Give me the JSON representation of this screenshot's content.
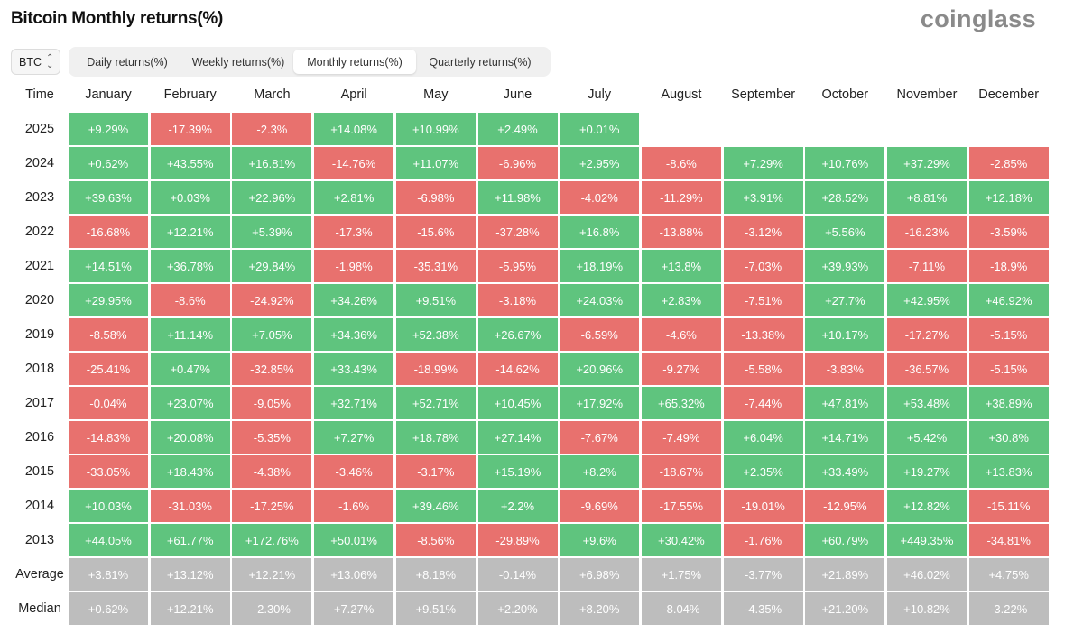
{
  "header": {
    "title": "Bitcoin Monthly returns(%)",
    "logo": "coinglass"
  },
  "coin_select": {
    "value": "BTC"
  },
  "tabs": [
    {
      "label": "Daily returns(%)",
      "active": false
    },
    {
      "label": "Weekly returns(%)",
      "active": false
    },
    {
      "label": "Monthly returns(%)",
      "active": true
    },
    {
      "label": "Quarterly returns(%)",
      "active": false
    }
  ],
  "colors": {
    "positive": "#5fc47e",
    "negative": "#e8716e",
    "summary": "#bdbdbd"
  },
  "table": {
    "corner_label": "Time",
    "months": [
      "January",
      "February",
      "March",
      "April",
      "May",
      "June",
      "July",
      "August",
      "September",
      "October",
      "November",
      "December"
    ],
    "rows": [
      {
        "label": "2025",
        "type": "year",
        "values": [
          "+9.29%",
          "-17.39%",
          "-2.3%",
          "+14.08%",
          "+10.99%",
          "+2.49%",
          "+0.01%",
          "",
          "",
          "",
          "",
          ""
        ]
      },
      {
        "label": "2024",
        "type": "year",
        "values": [
          "+0.62%",
          "+43.55%",
          "+16.81%",
          "-14.76%",
          "+11.07%",
          "-6.96%",
          "+2.95%",
          "-8.6%",
          "+7.29%",
          "+10.76%",
          "+37.29%",
          "-2.85%"
        ]
      },
      {
        "label": "2023",
        "type": "year",
        "values": [
          "+39.63%",
          "+0.03%",
          "+22.96%",
          "+2.81%",
          "-6.98%",
          "+11.98%",
          "-4.02%",
          "-11.29%",
          "+3.91%",
          "+28.52%",
          "+8.81%",
          "+12.18%"
        ]
      },
      {
        "label": "2022",
        "type": "year",
        "values": [
          "-16.68%",
          "+12.21%",
          "+5.39%",
          "-17.3%",
          "-15.6%",
          "-37.28%",
          "+16.8%",
          "-13.88%",
          "-3.12%",
          "+5.56%",
          "-16.23%",
          "-3.59%"
        ]
      },
      {
        "label": "2021",
        "type": "year",
        "values": [
          "+14.51%",
          "+36.78%",
          "+29.84%",
          "-1.98%",
          "-35.31%",
          "-5.95%",
          "+18.19%",
          "+13.8%",
          "-7.03%",
          "+39.93%",
          "-7.11%",
          "-18.9%"
        ]
      },
      {
        "label": "2020",
        "type": "year",
        "values": [
          "+29.95%",
          "-8.6%",
          "-24.92%",
          "+34.26%",
          "+9.51%",
          "-3.18%",
          "+24.03%",
          "+2.83%",
          "-7.51%",
          "+27.7%",
          "+42.95%",
          "+46.92%"
        ]
      },
      {
        "label": "2019",
        "type": "year",
        "values": [
          "-8.58%",
          "+11.14%",
          "+7.05%",
          "+34.36%",
          "+52.38%",
          "+26.67%",
          "-6.59%",
          "-4.6%",
          "-13.38%",
          "+10.17%",
          "-17.27%",
          "-5.15%"
        ]
      },
      {
        "label": "2018",
        "type": "year",
        "values": [
          "-25.41%",
          "+0.47%",
          "-32.85%",
          "+33.43%",
          "-18.99%",
          "-14.62%",
          "+20.96%",
          "-9.27%",
          "-5.58%",
          "-3.83%",
          "-36.57%",
          "-5.15%"
        ]
      },
      {
        "label": "2017",
        "type": "year",
        "values": [
          "-0.04%",
          "+23.07%",
          "-9.05%",
          "+32.71%",
          "+52.71%",
          "+10.45%",
          "+17.92%",
          "+65.32%",
          "-7.44%",
          "+47.81%",
          "+53.48%",
          "+38.89%"
        ]
      },
      {
        "label": "2016",
        "type": "year",
        "values": [
          "-14.83%",
          "+20.08%",
          "-5.35%",
          "+7.27%",
          "+18.78%",
          "+27.14%",
          "-7.67%",
          "-7.49%",
          "+6.04%",
          "+14.71%",
          "+5.42%",
          "+30.8%"
        ]
      },
      {
        "label": "2015",
        "type": "year",
        "values": [
          "-33.05%",
          "+18.43%",
          "-4.38%",
          "-3.46%",
          "-3.17%",
          "+15.19%",
          "+8.2%",
          "-18.67%",
          "+2.35%",
          "+33.49%",
          "+19.27%",
          "+13.83%"
        ]
      },
      {
        "label": "2014",
        "type": "year",
        "values": [
          "+10.03%",
          "-31.03%",
          "-17.25%",
          "-1.6%",
          "+39.46%",
          "+2.2%",
          "-9.69%",
          "-17.55%",
          "-19.01%",
          "-12.95%",
          "+12.82%",
          "-15.11%"
        ]
      },
      {
        "label": "2013",
        "type": "year",
        "values": [
          "+44.05%",
          "+61.77%",
          "+172.76%",
          "+50.01%",
          "-8.56%",
          "-29.89%",
          "+9.6%",
          "+30.42%",
          "-1.76%",
          "+60.79%",
          "+449.35%",
          "-34.81%"
        ]
      },
      {
        "label": "Average",
        "type": "summary",
        "values": [
          "+3.81%",
          "+13.12%",
          "+12.21%",
          "+13.06%",
          "+8.18%",
          "-0.14%",
          "+6.98%",
          "+1.75%",
          "-3.77%",
          "+21.89%",
          "+46.02%",
          "+4.75%"
        ]
      },
      {
        "label": "Median",
        "type": "summary",
        "values": [
          "+0.62%",
          "+12.21%",
          "-2.30%",
          "+7.27%",
          "+9.51%",
          "+2.20%",
          "+8.20%",
          "-8.04%",
          "-4.35%",
          "+21.20%",
          "+10.82%",
          "-3.22%"
        ]
      }
    ]
  }
}
